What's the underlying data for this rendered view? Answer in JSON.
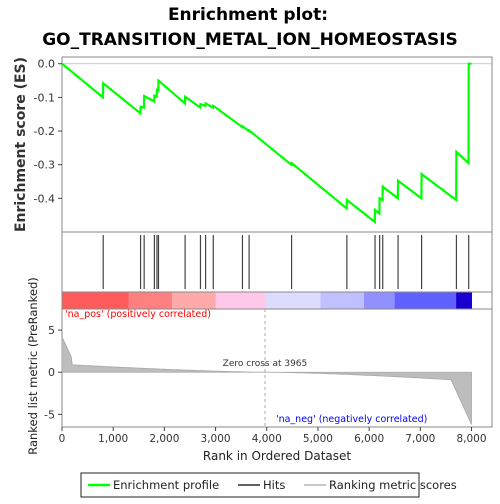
{
  "chart_data": {
    "type": "line",
    "title_line1": "Enrichment plot:",
    "title_line2": "GO_TRANSITION_METAL_ION_HOMEOSTASIS",
    "es_panel": {
      "ylabel": "Enrichment score (ES)",
      "yticks": [
        0.0,
        -0.1,
        -0.2,
        -0.3,
        -0.4
      ],
      "ytick_labels": [
        "0.0",
        "-0.1",
        "-0.2",
        "-0.3",
        "-0.4"
      ],
      "ylim": [
        -0.5,
        0.02
      ],
      "series": [
        {
          "name": "Enrichment profile",
          "color": "#00ff00",
          "x": [
            0,
            800,
            805,
            1530,
            1535,
            1600,
            1605,
            1800,
            1805,
            1850,
            1855,
            1880,
            1885,
            2400,
            2405,
            2700,
            2705,
            2800,
            2805,
            2950,
            2955,
            3520,
            3525,
            3650,
            3655,
            4480,
            4485,
            5560,
            5565,
            6110,
            6115,
            6200,
            6205,
            6260,
            6265,
            6560,
            6565,
            7020,
            7025,
            7700,
            7705,
            7940,
            7945,
            8000
          ],
          "y": [
            0.0,
            -0.1,
            -0.058,
            -0.147,
            -0.128,
            -0.13,
            -0.096,
            -0.112,
            -0.095,
            -0.098,
            -0.078,
            -0.08,
            -0.05,
            -0.118,
            -0.098,
            -0.13,
            -0.12,
            -0.125,
            -0.118,
            -0.13,
            -0.125,
            -0.188,
            -0.186,
            -0.2,
            -0.198,
            -0.3,
            -0.295,
            -0.43,
            -0.405,
            -0.47,
            -0.435,
            -0.445,
            -0.4,
            -0.405,
            -0.365,
            -0.4,
            -0.348,
            -0.4,
            -0.328,
            -0.405,
            -0.262,
            -0.295,
            0.0,
            0.0
          ]
        }
      ]
    },
    "hits": {
      "legend_label": "Hits",
      "positions": [
        805,
        1535,
        1605,
        1805,
        1855,
        1885,
        2405,
        2705,
        2805,
        2955,
        3525,
        3655,
        4485,
        5565,
        6115,
        6205,
        6265,
        6565,
        7025,
        7705,
        7945
      ]
    },
    "colorbar": {
      "label_pos": "'na_pos' (positively correlated)",
      "label_neg": "'na_neg' (negatively correlated)",
      "label_pos_color": "#ff0000",
      "label_neg_color": "#0000ff",
      "segments": [
        {
          "from": 0,
          "to": 1300,
          "color": "#ff5b5b"
        },
        {
          "from": 1300,
          "to": 2150,
          "color": "#ff8080"
        },
        {
          "from": 2150,
          "to": 3000,
          "color": "#ffaaaa"
        },
        {
          "from": 3000,
          "to": 3965,
          "color": "#ffc8e8"
        },
        {
          "from": 3965,
          "to": 5050,
          "color": "#dcdcff"
        },
        {
          "from": 5050,
          "to": 5900,
          "color": "#c0c0ff"
        },
        {
          "from": 5900,
          "to": 6500,
          "color": "#9090ff"
        },
        {
          "from": 6500,
          "to": 7700,
          "color": "#6060ff"
        },
        {
          "from": 7700,
          "to": 8000,
          "color": "#1a00d0"
        }
      ]
    },
    "metric_panel": {
      "ylabel": "Ranked list metric (PreRanked)",
      "yticks": [
        5,
        0,
        -5
      ],
      "ytick_labels": [
        "5",
        "0",
        "-5"
      ],
      "ylim": [
        -6.5,
        7.5
      ],
      "zero_cross_label": "Zero cross at 3965",
      "zero_cross": 3965
    },
    "xaxis": {
      "xlabel": "Rank in Ordered Dataset",
      "xlim": [
        0,
        8400
      ],
      "xticks": [
        0,
        2000,
        4000,
        6000,
        8000
      ],
      "xtick_labels": [
        "0",
        "1,000",
        "2,000",
        "3,000",
        "4,000",
        "5,000",
        "6,000",
        "7,000",
        "8,000"
      ],
      "xtick_values": [
        0,
        1000,
        2000,
        3000,
        4000,
        5000,
        6000,
        7000,
        8000
      ]
    },
    "legend": {
      "items": [
        {
          "label": "Enrichment profile",
          "color": "#00ff00"
        },
        {
          "label": "Hits",
          "color": "#606060"
        },
        {
          "label": "Ranking metric scores",
          "color": "#c8c8c8"
        }
      ]
    }
  }
}
